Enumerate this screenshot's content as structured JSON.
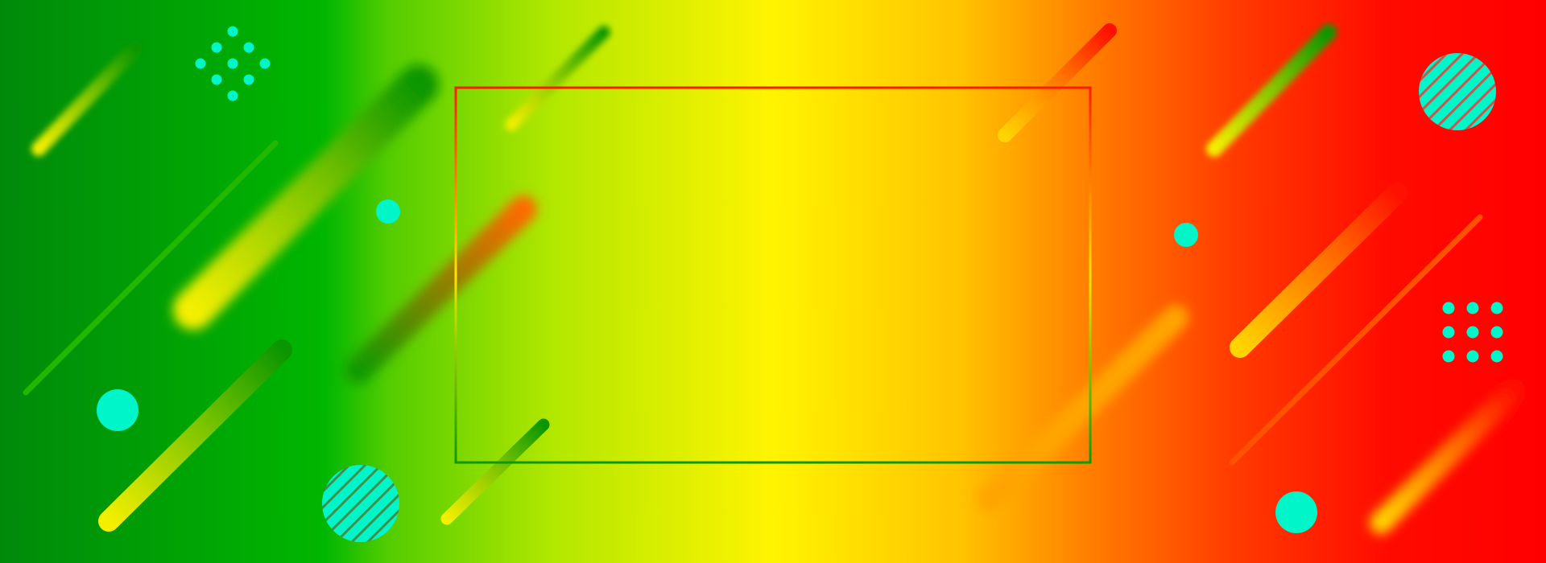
{
  "banner": {
    "colors": {
      "green_dark": "#008a0a",
      "green": "#00b600",
      "yellow": "#fff400",
      "orange": "#ff7a00",
      "red": "#ff0000",
      "accent_cyan": "#00f5c8"
    },
    "frame": {
      "title": "",
      "subtitle": ""
    },
    "decorations": {
      "icons": [
        "dot-diamond-pattern-icon",
        "dot-grid-pattern-icon",
        "hatched-circle-icon",
        "solid-circle-icon",
        "diagonal-capsule-stroke-icon"
      ]
    }
  }
}
